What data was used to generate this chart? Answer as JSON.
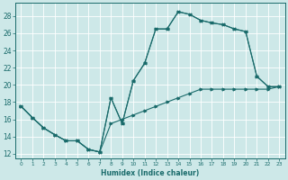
{
  "xlabel": "Humidex (Indice chaleur)",
  "background_color": "#cde8e8",
  "grid_color": "#ffffff",
  "line_color": "#1a6b6b",
  "xlim": [
    -0.5,
    23.5
  ],
  "ylim": [
    11.5,
    29.5
  ],
  "xticks": [
    0,
    1,
    2,
    3,
    4,
    5,
    6,
    7,
    8,
    9,
    10,
    11,
    12,
    13,
    14,
    15,
    16,
    17,
    18,
    19,
    20,
    21,
    22,
    23
  ],
  "yticks": [
    12,
    14,
    16,
    18,
    20,
    22,
    24,
    26,
    28
  ],
  "line1_x": [
    0,
    1,
    2,
    3,
    4,
    5,
    6,
    7,
    8,
    9,
    10,
    11,
    12,
    13,
    14,
    15,
    16,
    17,
    18,
    19,
    20,
    21,
    22,
    23
  ],
  "line1_y": [
    17.5,
    16.2,
    15.0,
    14.2,
    13.5,
    13.5,
    12.5,
    12.2,
    18.5,
    15.5,
    20.5,
    22.5,
    26.5,
    26.5,
    28.5,
    28.2,
    27.5,
    27.2,
    27.0,
    26.5,
    26.2,
    21.0,
    19.8,
    19.8
  ],
  "line2_x": [
    0,
    1,
    2,
    3,
    4,
    5,
    6,
    7,
    8,
    9,
    10,
    11,
    12,
    13,
    14,
    15,
    16,
    17,
    18,
    19,
    20,
    21,
    22,
    23
  ],
  "line2_y": [
    17.5,
    16.2,
    15.0,
    14.2,
    13.5,
    13.5,
    12.5,
    12.2,
    18.5,
    15.5,
    20.5,
    22.5,
    26.5,
    26.5,
    28.5,
    28.2,
    27.5,
    27.2,
    27.0,
    26.5,
    26.2,
    21.0,
    19.8,
    19.8
  ],
  "line3_x": [
    0,
    1,
    2,
    3,
    4,
    5,
    6,
    7,
    8,
    9,
    10,
    11,
    12,
    13,
    14,
    15,
    16,
    17,
    18,
    19,
    20,
    21,
    22,
    23
  ],
  "line3_y": [
    17.5,
    16.2,
    15.0,
    14.2,
    13.5,
    13.5,
    12.5,
    12.2,
    15.5,
    16.0,
    16.5,
    17.0,
    17.5,
    18.0,
    18.5,
    19.0,
    19.5,
    19.5,
    19.5,
    19.5,
    19.5,
    19.5,
    19.5,
    19.8
  ]
}
